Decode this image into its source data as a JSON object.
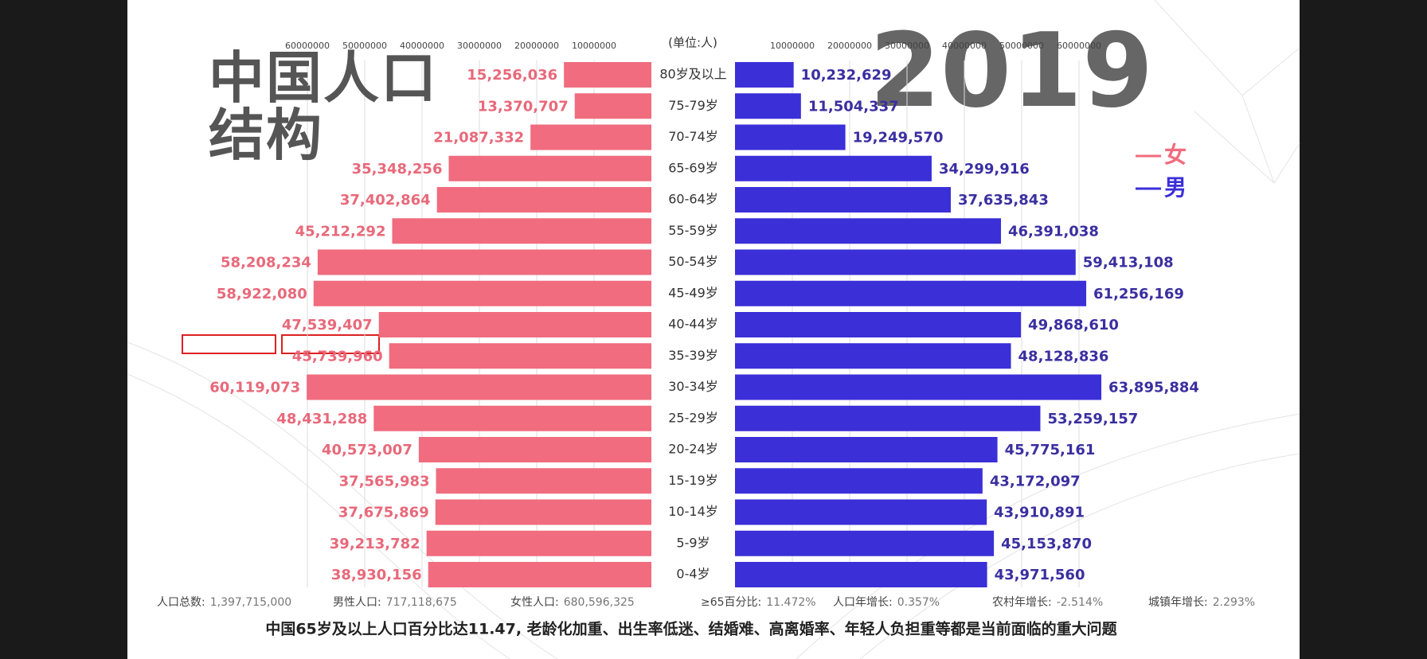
{
  "chart_data": {
    "type": "pyramid",
    "title": "中国人口结构",
    "annotation": "2019",
    "unit_label": "(单位:人)",
    "categories": [
      "80岁及以上",
      "75-79岁",
      "70-74岁",
      "65-69岁",
      "60-64岁",
      "55-59岁",
      "50-54岁",
      "45-49岁",
      "40-44岁",
      "35-39岁",
      "30-34岁",
      "25-29岁",
      "20-24岁",
      "15-19岁",
      "10-14岁",
      "5-9岁",
      "0-4岁"
    ],
    "series": [
      {
        "name": "女",
        "color": "#f06c7e",
        "side": "left",
        "values": [
          15256036,
          13370707,
          21087332,
          35348256,
          37402864,
          45212292,
          58208234,
          58922080,
          47539407,
          45739960,
          60119073,
          48431288,
          40573007,
          37565983,
          37675869,
          39213782,
          38930156
        ],
        "value_labels": [
          "15,256,036",
          "13,370,707",
          "21,087,332",
          "35,348,256",
          "37,402,864",
          "45,212,292",
          "58,208,234",
          "58,922,080",
          "47,539,407",
          "45,739,960",
          "60,119,073",
          "48,431,288",
          "40,573,007",
          "37,565,983",
          "37,675,869",
          "39,213,782",
          "38,930,156"
        ]
      },
      {
        "name": "男",
        "color": "#3b2fd8",
        "side": "right",
        "values": [
          10232629,
          11504337,
          19249570,
          34299916,
          37635843,
          46391038,
          59413108,
          61256169,
          49868610,
          48128836,
          63895884,
          53259157,
          45775161,
          43172097,
          43910891,
          45153870,
          43971560
        ],
        "value_labels": [
          "10,232,629",
          "11,504,337",
          "19,249,570",
          "34,299,916",
          "37,635,843",
          "46,391,038",
          "59,413,108",
          "61,256,169",
          "49,868,610",
          "48,128,836",
          "63,895,884",
          "53,259,157",
          "45,775,161",
          "43,172,097",
          "43,910,891",
          "45,153,870",
          "43,971,560"
        ]
      }
    ],
    "xlim": [
      0,
      70000000
    ],
    "xticks": [
      10000000,
      20000000,
      30000000,
      40000000,
      50000000,
      60000000
    ],
    "grid": true,
    "stats": [
      {
        "label": "人口总数:",
        "value": "1,397,715,000"
      },
      {
        "label": "男性人口:",
        "value": "717,118,675"
      },
      {
        "label": "女性人口:",
        "value": "680,596,325"
      },
      {
        "label": "≥65百分比:",
        "value": "11.472%"
      },
      {
        "label": "人口年增长:",
        "value": "0.357%"
      },
      {
        "label": "农村年增长:",
        "value": "-2.514%"
      },
      {
        "label": "城镇年增长:",
        "value": "2.293%"
      }
    ],
    "caption": "中国65岁及以上人口百分比达11.47, 老龄化加重、出生率低迷、结婚难、高离婚率、年轻人负担重等都是当前面临的重大问题"
  }
}
